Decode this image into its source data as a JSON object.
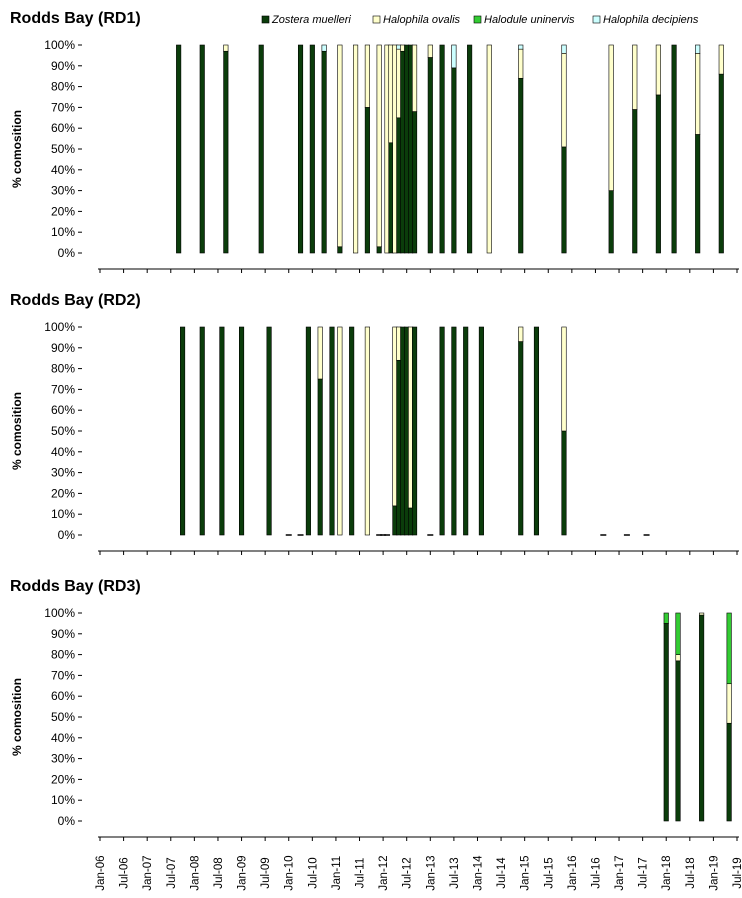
{
  "chart_data": {
    "type": "bar",
    "stacked": true,
    "percent_stacked": true,
    "ylim": [
      0,
      100
    ],
    "yticks": [
      "0%",
      "10%",
      "20%",
      "30%",
      "40%",
      "50%",
      "60%",
      "70%",
      "80%",
      "90%",
      "100%"
    ],
    "ylabel": "% comosition",
    "x_axis": {
      "type": "date",
      "start": "2006-01",
      "end": "2019-07",
      "tick_labels": [
        "Jan-06",
        "Jul-06",
        "Jan-07",
        "Jul-07",
        "Jan-08",
        "Jul-08",
        "Jan-09",
        "Jul-09",
        "Jan-10",
        "Jul-10",
        "Jan-11",
        "Jul-11",
        "Jan-12",
        "Jul-12",
        "Jan-13",
        "Jul-13",
        "Jan-14",
        "Jul-14",
        "Jan-15",
        "Jul-15",
        "Jan-16",
        "Jul-16",
        "Jan-17",
        "Jul-17",
        "Jan-18",
        "Jul-18",
        "Jan-19",
        "Jul-19"
      ]
    },
    "legend": {
      "placement": "top-right",
      "entries": [
        {
          "label": "Zostera muelleri",
          "color": "#0b3d0b"
        },
        {
          "label": "Halophila ovalis",
          "color": "#ffffcc"
        },
        {
          "label": "Halodule uninervis",
          "color": "#33cc33"
        },
        {
          "label": "Halophila decipiens",
          "color": "#ccffff"
        }
      ]
    },
    "series_colors": {
      "zm": "#0b3d0b",
      "ho": "#ffffcc",
      "hu": "#33cc33",
      "hd": "#ccffff"
    },
    "panels": [
      {
        "title": "Rodds Bay (RD1)",
        "bars": [
          {
            "date": "2007-09",
            "zm": 100,
            "ho": 0,
            "hu": 0,
            "hd": 0
          },
          {
            "date": "2008-03",
            "zm": 100,
            "ho": 0,
            "hu": 0,
            "hd": 0
          },
          {
            "date": "2008-09",
            "zm": 97,
            "ho": 3,
            "hu": 0,
            "hd": 0
          },
          {
            "date": "2009-06",
            "zm": 100,
            "ho": 0,
            "hu": 0,
            "hd": 0
          },
          {
            "date": "2010-04",
            "zm": 100,
            "ho": 0,
            "hu": 0,
            "hd": 0
          },
          {
            "date": "2010-07",
            "zm": 100,
            "ho": 0,
            "hu": 0,
            "hd": 0
          },
          {
            "date": "2010-10",
            "zm": 97,
            "ho": 0,
            "hu": 0,
            "hd": 3
          },
          {
            "date": "2011-02",
            "zm": 3,
            "ho": 97,
            "hu": 0,
            "hd": 0
          },
          {
            "date": "2011-06",
            "zm": 0,
            "ho": 100,
            "hu": 0,
            "hd": 0
          },
          {
            "date": "2011-09",
            "zm": 70,
            "ho": 30,
            "hu": 0,
            "hd": 0
          },
          {
            "date": "2011-12",
            "zm": 3,
            "ho": 97,
            "hu": 0,
            "hd": 0
          },
          {
            "date": "2012-02",
            "zm": 0,
            "ho": 100,
            "hu": 0,
            "hd": 0
          },
          {
            "date": "2012-03",
            "zm": 53,
            "ho": 47,
            "hu": 0,
            "hd": 0
          },
          {
            "date": "2012-04",
            "zm": 0,
            "ho": 100,
            "hu": 0,
            "hd": 0
          },
          {
            "date": "2012-05",
            "zm": 65,
            "ho": 33,
            "hu": 0,
            "hd": 2
          },
          {
            "date": "2012-06",
            "zm": 97,
            "ho": 3,
            "hu": 0,
            "hd": 0
          },
          {
            "date": "2012-07",
            "zm": 100,
            "ho": 0,
            "hu": 0,
            "hd": 0
          },
          {
            "date": "2012-08",
            "zm": 100,
            "ho": 0,
            "hu": 0,
            "hd": 0
          },
          {
            "date": "2012-09",
            "zm": 68,
            "ho": 32,
            "hu": 0,
            "hd": 0
          },
          {
            "date": "2013-01",
            "zm": 94,
            "ho": 6,
            "hu": 0,
            "hd": 0
          },
          {
            "date": "2013-04",
            "zm": 100,
            "ho": 0,
            "hu": 0,
            "hd": 0
          },
          {
            "date": "2013-07",
            "zm": 89,
            "ho": 0,
            "hu": 0,
            "hd": 11
          },
          {
            "date": "2013-11",
            "zm": 100,
            "ho": 0,
            "hu": 0,
            "hd": 0
          },
          {
            "date": "2014-04",
            "zm": 0,
            "ho": 100,
            "hu": 0,
            "hd": 0
          },
          {
            "date": "2014-12",
            "zm": 84,
            "ho": 14,
            "hu": 0,
            "hd": 2
          },
          {
            "date": "2015-11",
            "zm": 51,
            "ho": 45,
            "hu": 0,
            "hd": 4
          },
          {
            "date": "2016-11",
            "zm": 30,
            "ho": 70,
            "hu": 0,
            "hd": 0
          },
          {
            "date": "2017-05",
            "zm": 69,
            "ho": 31,
            "hu": 0,
            "hd": 0
          },
          {
            "date": "2017-11",
            "zm": 76,
            "ho": 24,
            "hu": 0,
            "hd": 0
          },
          {
            "date": "2018-03",
            "zm": 100,
            "ho": 0,
            "hu": 0,
            "hd": 0
          },
          {
            "date": "2018-09",
            "zm": 57,
            "ho": 39,
            "hu": 0,
            "hd": 4
          },
          {
            "date": "2019-03",
            "zm": 86,
            "ho": 14,
            "hu": 0,
            "hd": 0
          }
        ],
        "zero_markers": []
      },
      {
        "title": "Rodds Bay (RD2)",
        "bars": [
          {
            "date": "2007-10",
            "zm": 100,
            "ho": 0,
            "hu": 0,
            "hd": 0
          },
          {
            "date": "2008-03",
            "zm": 100,
            "ho": 0,
            "hu": 0,
            "hd": 0
          },
          {
            "date": "2008-08",
            "zm": 100,
            "ho": 0,
            "hu": 0,
            "hd": 0
          },
          {
            "date": "2009-01",
            "zm": 100,
            "ho": 0,
            "hu": 0,
            "hd": 0
          },
          {
            "date": "2009-08",
            "zm": 100,
            "ho": 0,
            "hu": 0,
            "hd": 0
          },
          {
            "date": "2010-06",
            "zm": 100,
            "ho": 0,
            "hu": 0,
            "hd": 0
          },
          {
            "date": "2010-09",
            "zm": 75,
            "ho": 25,
            "hu": 0,
            "hd": 0
          },
          {
            "date": "2010-12",
            "zm": 100,
            "ho": 0,
            "hu": 0,
            "hd": 0
          },
          {
            "date": "2011-02",
            "zm": 0,
            "ho": 100,
            "hu": 0,
            "hd": 0
          },
          {
            "date": "2011-05",
            "zm": 100,
            "ho": 0,
            "hu": 0,
            "hd": 0
          },
          {
            "date": "2011-09",
            "zm": 0,
            "ho": 100,
            "hu": 0,
            "hd": 0
          },
          {
            "date": "2012-04",
            "zm": 14,
            "ho": 86,
            "hu": 0,
            "hd": 0
          },
          {
            "date": "2012-05",
            "zm": 84,
            "ho": 16,
            "hu": 0,
            "hd": 0
          },
          {
            "date": "2012-06",
            "zm": 100,
            "ho": 0,
            "hu": 0,
            "hd": 0
          },
          {
            "date": "2012-07",
            "zm": 100,
            "ho": 0,
            "hu": 0,
            "hd": 0
          },
          {
            "date": "2012-08",
            "zm": 13,
            "ho": 87,
            "hu": 0,
            "hd": 0
          },
          {
            "date": "2012-09",
            "zm": 100,
            "ho": 0,
            "hu": 0,
            "hd": 0
          },
          {
            "date": "2013-04",
            "zm": 100,
            "ho": 0,
            "hu": 0,
            "hd": 0
          },
          {
            "date": "2013-07",
            "zm": 100,
            "ho": 0,
            "hu": 0,
            "hd": 0
          },
          {
            "date": "2013-10",
            "zm": 100,
            "ho": 0,
            "hu": 0,
            "hd": 0
          },
          {
            "date": "2014-02",
            "zm": 100,
            "ho": 0,
            "hu": 0,
            "hd": 0
          },
          {
            "date": "2014-12",
            "zm": 93,
            "ho": 7,
            "hu": 0,
            "hd": 0
          },
          {
            "date": "2015-04",
            "zm": 100,
            "ho": 0,
            "hu": 0,
            "hd": 0
          },
          {
            "date": "2015-11",
            "zm": 50,
            "ho": 50,
            "hu": 0,
            "hd": 0
          }
        ],
        "zero_markers": [
          "2010-01",
          "2010-04",
          "2011-12",
          "2012-01",
          "2012-02",
          "2013-01",
          "2016-09",
          "2017-03",
          "2017-08"
        ]
      },
      {
        "title": "Rodds Bay (RD3)",
        "bars": [
          {
            "date": "2018-01",
            "zm": 95,
            "ho": 0,
            "hu": 5,
            "hd": 0
          },
          {
            "date": "2018-04",
            "zm": 77,
            "ho": 3,
            "hu": 20,
            "hd": 0
          },
          {
            "date": "2018-10",
            "zm": 99,
            "ho": 1,
            "hu": 0,
            "hd": 0
          },
          {
            "date": "2019-05",
            "zm": 47,
            "ho": 19,
            "hu": 34,
            "hd": 0
          }
        ],
        "zero_markers": []
      }
    ]
  }
}
